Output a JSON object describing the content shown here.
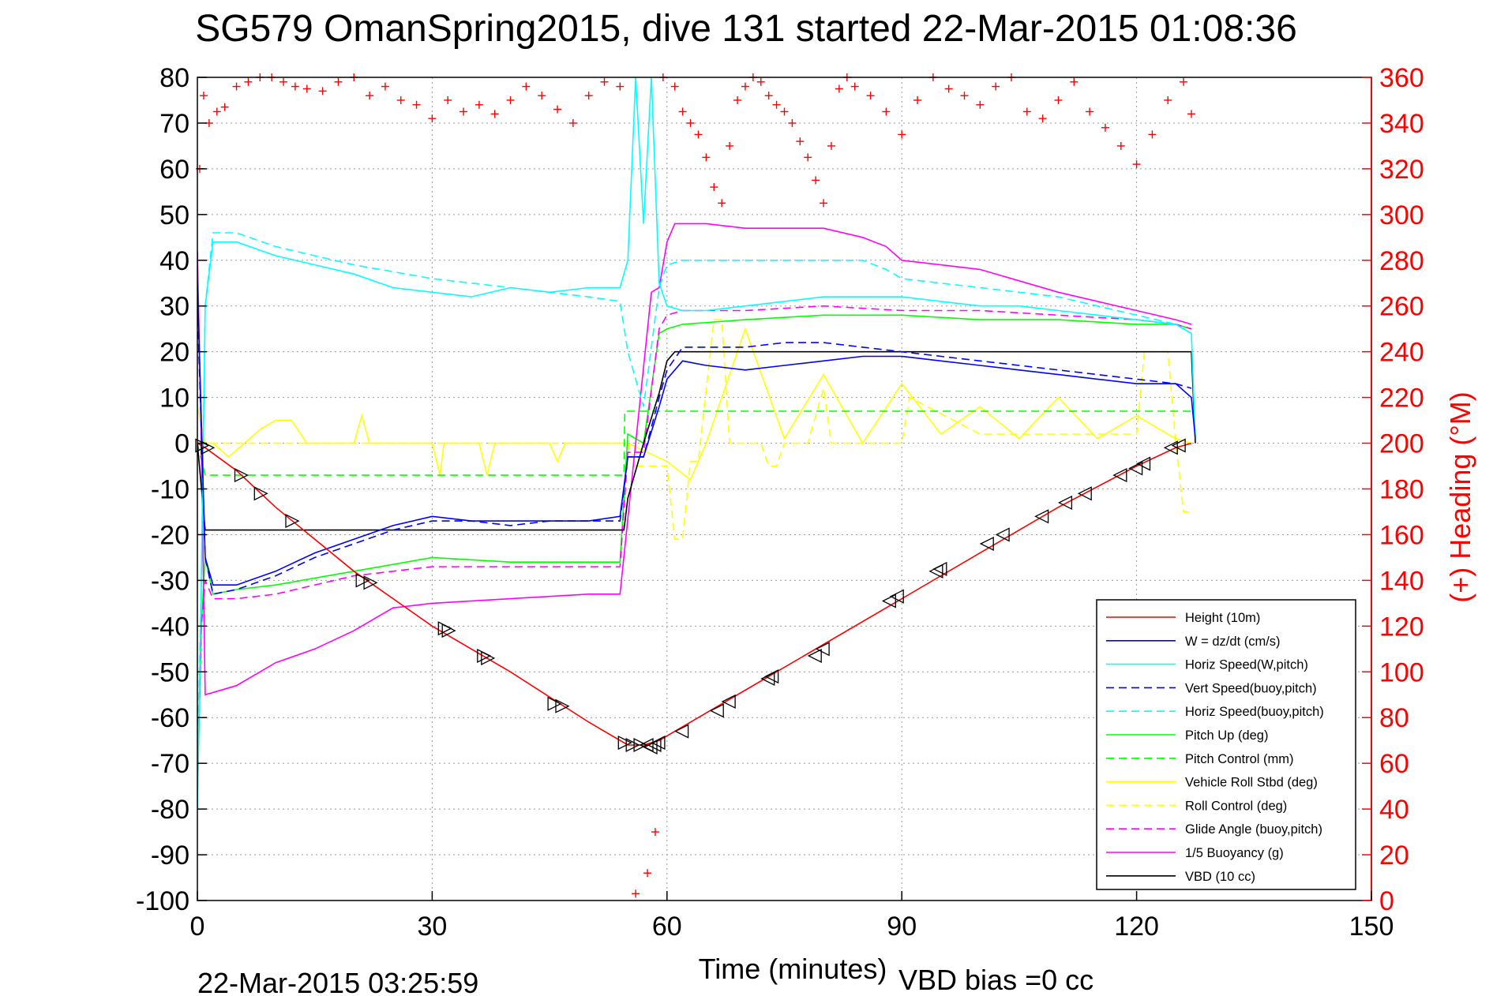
{
  "title": "SG579 OmanSpring2015, dive 131 started 22-Mar-2015 01:08:36",
  "footer": {
    "timestamp": "22-Mar-2015 03:25:59",
    "vbd_bias": "VBD bias =0 cc"
  },
  "colors": {
    "height": "#ff0000",
    "w": "#0000ff",
    "horiz": "#00ffff",
    "pitch": "#00ff00",
    "roll": "#ffff00",
    "glide": "#ff00ff",
    "vbd": "#000000",
    "heading": "#ff0000"
  },
  "chart_data": {
    "type": "line",
    "title": "SG579 OmanSpring2015, dive 131 started 22-Mar-2015 01:08:36",
    "xlabel": "Time (minutes)",
    "ylabel": "",
    "y2label": "(+) Heading (°M)",
    "xlim": [
      0,
      150
    ],
    "ylim": [
      -100,
      80
    ],
    "y2lim": [
      0,
      360
    ],
    "grid": true,
    "legend_position": "lower-right",
    "x_ticks": [
      "0",
      "30",
      "60",
      "90",
      "120",
      "150"
    ],
    "y_ticks": [
      "80",
      "70",
      "60",
      "50",
      "40",
      "30",
      "20",
      "10",
      "0",
      "-10",
      "-20",
      "-30",
      "-40",
      "-50",
      "-60",
      "-70",
      "-80",
      "-90",
      "-100"
    ],
    "y2_ticks": [
      "360",
      "340",
      "320",
      "300",
      "280",
      "260",
      "240",
      "220",
      "200",
      "180",
      "160",
      "140",
      "120",
      "100",
      "80",
      "60",
      "40",
      "20",
      "0"
    ],
    "series": [
      {
        "name": "Height (10m)",
        "color": "#ff0000",
        "dash": "",
        "axis": "left",
        "x": [
          0,
          1,
          5,
          10,
          20,
          30,
          40,
          50,
          55,
          57,
          59,
          62,
          70,
          80,
          90,
          100,
          110,
          120,
          125,
          127
        ],
        "y": [
          0,
          -1,
          -6,
          -14,
          -28,
          -40,
          -50,
          -61,
          -66,
          -66,
          -65,
          -62,
          -54,
          -44,
          -34,
          -24,
          -14,
          -5,
          -1,
          0
        ]
      },
      {
        "name": "W = dz/dt (cm/s)",
        "color": "#0000ff",
        "dash": "",
        "axis": "left",
        "x": [
          0,
          0.5,
          1,
          2,
          5,
          10,
          15,
          20,
          25,
          30,
          35,
          40,
          45,
          50,
          54,
          55,
          57,
          59,
          60,
          62,
          65,
          70,
          75,
          80,
          85,
          90,
          95,
          100,
          105,
          110,
          115,
          120,
          125,
          127,
          127.5
        ],
        "y": [
          35,
          5,
          -25,
          -31,
          -31,
          -28,
          -24,
          -21,
          -18,
          -16,
          -17,
          -17,
          -17,
          -17,
          -16,
          -3,
          -3,
          8,
          14,
          18,
          17,
          16,
          17,
          18,
          19,
          19,
          18,
          17,
          16,
          15,
          14,
          13,
          13,
          10,
          1
        ]
      },
      {
        "name": "Horiz Speed(W,pitch)",
        "color": "#00ffff",
        "dash": "",
        "axis": "left",
        "x": [
          0,
          0.5,
          1,
          2,
          5,
          10,
          15,
          20,
          25,
          30,
          35,
          40,
          45,
          50,
          54,
          55,
          56,
          57,
          58,
          59,
          60,
          62,
          65,
          70,
          75,
          80,
          85,
          90,
          95,
          100,
          105,
          110,
          115,
          120,
          125,
          127,
          127.5
        ],
        "y": [
          -80,
          -30,
          30,
          44,
          44,
          41,
          39,
          37,
          34,
          33,
          32,
          34,
          33,
          34,
          34,
          40,
          80,
          48,
          80,
          35,
          30,
          29,
          29,
          30,
          31,
          32,
          32,
          32,
          31,
          30,
          30,
          29,
          28,
          27,
          26,
          24,
          1
        ]
      },
      {
        "name": "Vert Speed(buoy,pitch)",
        "color": "#0000ff",
        "dash": "10,6",
        "axis": "left",
        "x": [
          0,
          0.5,
          1,
          2,
          5,
          10,
          15,
          20,
          25,
          30,
          35,
          40,
          45,
          50,
          54,
          55,
          57,
          59,
          60,
          62,
          65,
          70,
          75,
          80,
          85,
          90,
          95,
          100,
          105,
          110,
          115,
          120,
          125,
          127
        ],
        "y": [
          30,
          3,
          -25,
          -33,
          -32,
          -29,
          -25,
          -22,
          -19,
          -17,
          -17,
          -18,
          -17,
          -17,
          -17,
          -3,
          -3,
          10,
          16,
          21,
          21,
          21,
          22,
          22,
          21,
          20,
          19,
          18,
          17,
          16,
          15,
          14,
          13,
          12
        ]
      },
      {
        "name": "Horiz Speed(buoy,pitch)",
        "color": "#00ffff",
        "dash": "10,6",
        "axis": "left",
        "x": [
          0,
          0.5,
          1,
          2,
          5,
          10,
          20,
          30,
          40,
          50,
          54,
          55,
          57,
          59,
          60,
          62,
          70,
          80,
          85,
          88,
          90,
          95,
          100,
          105,
          110,
          115,
          120,
          125,
          127
        ],
        "y": [
          -70,
          -30,
          30,
          46,
          46,
          43,
          39,
          36,
          34,
          32,
          31,
          20,
          8,
          34,
          39,
          40,
          40,
          40,
          40,
          38,
          36,
          35,
          34,
          33,
          32,
          30,
          28,
          26,
          24
        ]
      },
      {
        "name": "Pitch Up (deg)",
        "color": "#00ff00",
        "dash": "",
        "axis": "left",
        "x": [
          0,
          0.5,
          1,
          2,
          5,
          10,
          20,
          30,
          40,
          50,
          54,
          55,
          57,
          59,
          60,
          62,
          70,
          80,
          90,
          100,
          110,
          120,
          125,
          127
        ],
        "y": [
          -78,
          -40,
          -25,
          -33,
          -32,
          -31,
          -28,
          -25,
          -26,
          -26,
          -26,
          2,
          0,
          24,
          25,
          26,
          27,
          28,
          28,
          27,
          27,
          26,
          26,
          25
        ]
      },
      {
        "name": "Pitch Control (mm)",
        "color": "#00ff00",
        "dash": "10,6",
        "axis": "left",
        "x": [
          0,
          1,
          54.5,
          54.6,
          127
        ],
        "y": [
          0,
          -7,
          -7,
          7,
          7
        ]
      },
      {
        "name": "Vehicle Roll Stbd (deg)",
        "color": "#ffff00",
        "dash": "",
        "axis": "left",
        "x": [
          0,
          1,
          2,
          4,
          6,
          8,
          10,
          12,
          14,
          20,
          21,
          22,
          30,
          31,
          31.5,
          36,
          37,
          38,
          45,
          46,
          47,
          55,
          60,
          63,
          65,
          70,
          75,
          80,
          85,
          90,
          95,
          100,
          105,
          110,
          115,
          120,
          125,
          127
        ],
        "y": [
          8,
          0,
          0,
          -3,
          0,
          3,
          5,
          5,
          0,
          0,
          6,
          0,
          0,
          -7,
          0,
          0,
          -7,
          0,
          0,
          -4,
          0,
          0,
          -4,
          -8,
          0,
          25,
          1,
          15,
          0,
          13,
          2,
          8,
          1,
          10,
          1,
          6,
          1,
          0
        ]
      },
      {
        "name": "Roll Control (deg)",
        "color": "#ffff00",
        "dash": "10,6",
        "axis": "left",
        "x": [
          0,
          55,
          56,
          60,
          61,
          62,
          63,
          64,
          66,
          67,
          68,
          69,
          70,
          72,
          73,
          74,
          75,
          78,
          80,
          81,
          90,
          91,
          100,
          110,
          120,
          121,
          124,
          125,
          126,
          127
        ],
        "y": [
          0,
          0,
          -5,
          -5,
          -21,
          -21,
          -4,
          -4,
          27,
          27,
          0,
          0,
          0,
          0,
          -5,
          -5,
          0,
          0,
          12,
          0,
          0,
          10,
          2,
          2,
          2,
          20,
          20,
          0,
          -15,
          -15
        ]
      },
      {
        "name": "Glide Angle (buoy,pitch)",
        "color": "#ff00ff",
        "dash": "10,6",
        "axis": "left",
        "x": [
          0,
          0.5,
          1,
          2,
          5,
          10,
          20,
          30,
          40,
          50,
          54,
          55,
          57,
          59,
          60,
          62,
          70,
          80,
          90,
          100,
          110,
          120,
          125,
          127
        ],
        "y": [
          -75,
          -40,
          -30,
          -34,
          -34,
          -33,
          -29,
          -27,
          -27,
          -27,
          -27,
          -2,
          -2,
          25,
          28,
          29,
          29,
          30,
          29,
          29,
          28,
          27,
          26,
          25
        ]
      },
      {
        "name": "1/5 Buoyancy (g)",
        "color": "#ff00ff",
        "dash": "",
        "axis": "left",
        "x": [
          0,
          0.5,
          1,
          5,
          10,
          15,
          20,
          25,
          30,
          40,
          50,
          54,
          56,
          58,
          59,
          60,
          61,
          65,
          70,
          75,
          80,
          85,
          88,
          90,
          95,
          100,
          110,
          120,
          125,
          127
        ],
        "y": [
          42,
          0,
          -55,
          -53,
          -48,
          -45,
          -41,
          -36,
          -35,
          -34,
          -33,
          -33,
          0,
          33,
          34,
          44,
          48,
          48,
          47,
          47,
          47,
          45,
          43,
          40,
          39,
          38,
          33,
          29,
          27,
          26
        ]
      },
      {
        "name": "VBD (10 cc)",
        "color": "#000000",
        "dash": "",
        "axis": "left",
        "x": [
          0,
          1,
          2,
          54.5,
          55,
          57,
          59,
          60,
          61,
          127,
          127.5
        ],
        "y": [
          0,
          -19,
          -19,
          -19,
          -12,
          0,
          11,
          18,
          20,
          20,
          0
        ]
      }
    ],
    "heading_scatter": {
      "name": "(+) Heading (°M)",
      "color": "#ff0000",
      "axis": "right",
      "x": [
        0.3,
        0.8,
        1.5,
        2.5,
        3.5,
        5,
        6.5,
        8,
        9.5,
        11,
        12.5,
        14,
        16,
        18,
        20,
        22,
        24,
        26,
        28,
        30,
        32,
        34,
        36,
        38,
        40,
        42,
        44,
        46,
        48,
        50,
        52,
        54,
        56,
        57.5,
        58.5,
        59.5,
        61,
        62,
        63,
        64,
        65,
        66,
        67,
        68,
        69,
        70,
        71,
        72,
        73,
        74,
        75,
        76,
        77,
        78,
        79,
        80,
        81,
        82,
        83,
        84,
        86,
        88,
        90,
        92,
        94,
        96,
        98,
        100,
        102,
        104,
        106,
        108,
        110,
        112,
        114,
        116,
        118,
        120,
        122,
        124,
        126,
        127
      ],
      "y": [
        320,
        352,
        340,
        345,
        347,
        356,
        358,
        360,
        360,
        358,
        356,
        355,
        354,
        358,
        360,
        352,
        356,
        350,
        348,
        342,
        350,
        345,
        348,
        344,
        350,
        356,
        352,
        346,
        340,
        352,
        358,
        356,
        3,
        12,
        30,
        360,
        356,
        345,
        340,
        335,
        325,
        312,
        305,
        330,
        350,
        356,
        360,
        358,
        352,
        348,
        345,
        340,
        332,
        325,
        315,
        305,
        330,
        355,
        360,
        356,
        352,
        345,
        335,
        350,
        360,
        355,
        352,
        348,
        356,
        360,
        345,
        342,
        350,
        358,
        345,
        338,
        330,
        322,
        335,
        350,
        358,
        344
      ]
    },
    "turn_markers": {
      "x": [
        0.5,
        1.2,
        5.5,
        8,
        12,
        21,
        22,
        31.5,
        32,
        36.5,
        37,
        45.5,
        46.5,
        54.5,
        55.5,
        56.5,
        57.5,
        58,
        58.5,
        59,
        62,
        66.5,
        68,
        73,
        73.5,
        79,
        80,
        88.5,
        89.5,
        94.5,
        95,
        101,
        103,
        108,
        111,
        113.5,
        118,
        120,
        121,
        124.5,
        125.5
      ],
      "y": [
        -0.5,
        -1,
        -7,
        -11,
        -17,
        -30,
        -30.5,
        -40.5,
        -41,
        -46.5,
        -47,
        -57,
        -57.5,
        -65.5,
        -66,
        -66,
        -66,
        -66.5,
        -66,
        -65.5,
        -63,
        -58.5,
        -56.5,
        -51.5,
        -51,
        -46.5,
        -45,
        -34.5,
        -33.5,
        -28,
        -27.5,
        -22,
        -20,
        -16,
        -13,
        -11,
        -7,
        -5.5,
        -4.5,
        -1,
        -0.5
      ]
    }
  }
}
